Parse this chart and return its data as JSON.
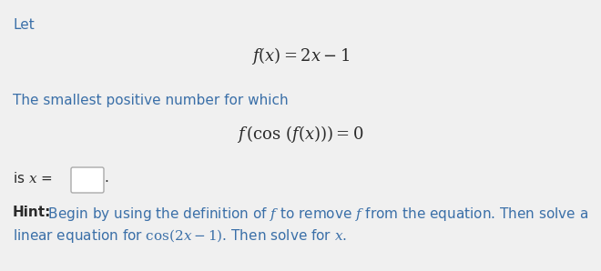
{
  "background_color": "#f0f0f0",
  "text_color_dark": "#2a2a2a",
  "text_color_blue": "#3a6fa8",
  "text_color_let": "#3a6fa8",
  "fig_width": 6.6,
  "fig_height": 2.98,
  "dpi": 100,
  "let_text": "Let",
  "eq1_latex": "$f(x) = 2x - 1$",
  "blue_line": "The smallest positive number for which",
  "eq2_latex": "$f\\,(\\cos\\,(f(x))) = 0$",
  "is_prefix": "is ",
  "is_x": "$x$",
  "is_eq": " =",
  "period_text": ".",
  "hint_bold": "Hint:",
  "hint_body1_a": " Begin by using the definition of ",
  "hint_italic_f1": "$f$",
  "hint_body1_b": " to remove ",
  "hint_italic_f2": "$f$",
  "hint_body1_c": " from the equation. Then solve a",
  "hint_line2": "linear equation for $\\cos(2x - 1)$. Then solve for $x$."
}
